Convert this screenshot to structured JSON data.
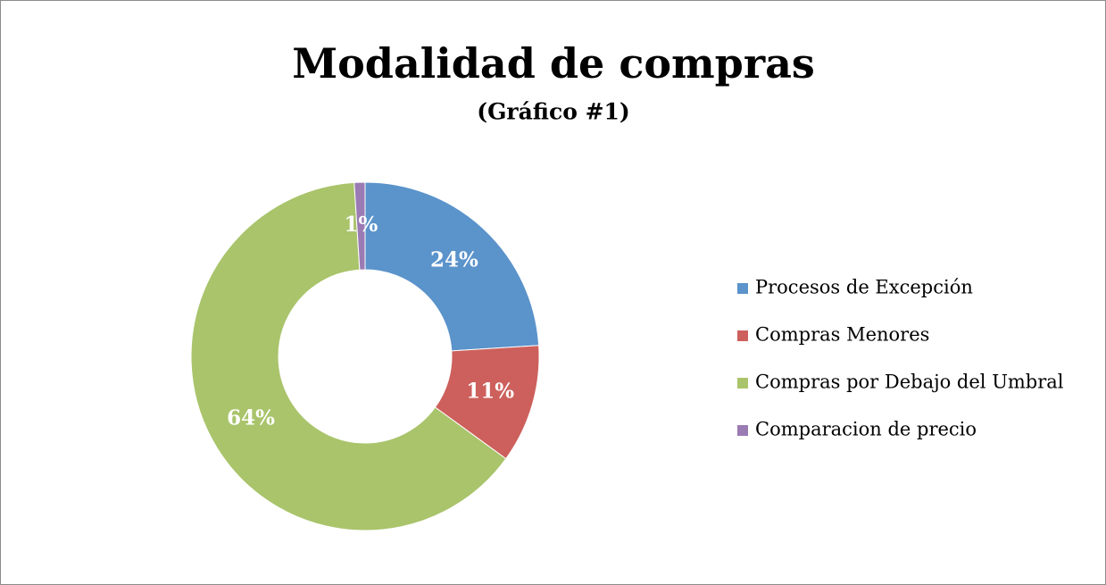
{
  "chart_data": {
    "type": "pie",
    "title": "Modalidad de compras",
    "subtitle": "(Gráfico #1)",
    "categories": [
      "Procesos de Excepción",
      "Compras Menores",
      "Compras por Debajo del Umbral",
      "Comparacion de precio"
    ],
    "values": [
      24,
      11,
      64,
      1
    ],
    "value_labels": [
      "24%",
      "11%",
      "64%",
      "1%"
    ],
    "colors": [
      "#5b93cb",
      "#cd605c",
      "#a9c46b",
      "#9a7bb4"
    ],
    "legend": "right"
  }
}
